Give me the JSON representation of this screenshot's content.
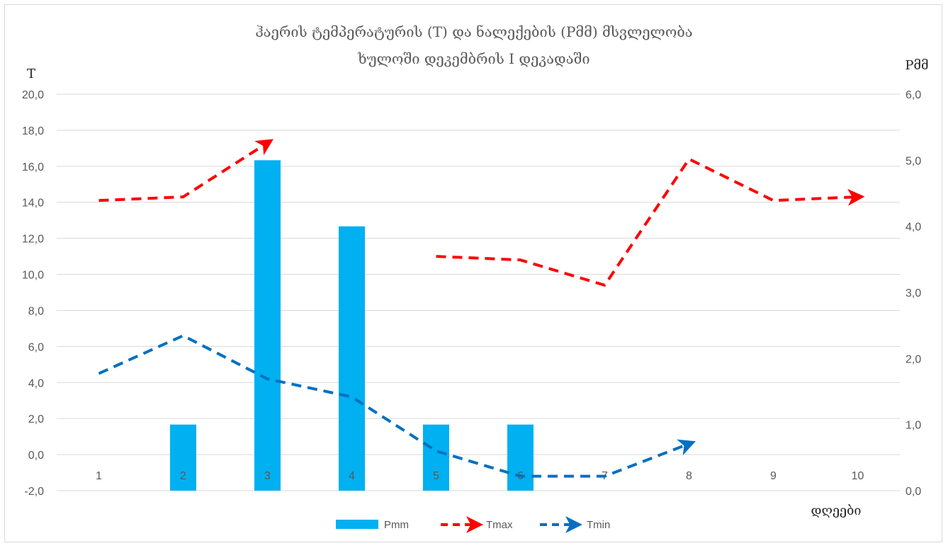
{
  "chart_data": {
    "type": "bar",
    "title": "ჰაერის ტემპერატურის (T) და ნალექების (Pმმ) მსვლელობა",
    "subtitle": "ხულოში დეკემბრის I დეკადაში",
    "ylabel": "T",
    "y2label": "Pმმ",
    "xlabel": "დღეები",
    "categories": [
      "1",
      "2",
      "3",
      "4",
      "5",
      "6",
      "7",
      "8",
      "9",
      "10"
    ],
    "ylim": [
      -2.0,
      20.0
    ],
    "y_ticks": [
      "20,0",
      "18,0",
      "16,0",
      "14,0",
      "12,0",
      "10,0",
      "8,0",
      "6,0",
      "4,0",
      "2,0",
      "0,0",
      "-2,0"
    ],
    "y2lim": [
      0.0,
      6.0
    ],
    "y2_ticks": [
      "6,0",
      "5,0",
      "4,0",
      "3,0",
      "2,0",
      "1,0",
      "0,0"
    ],
    "grid": true,
    "legend_position": "bottom",
    "series": [
      {
        "name": "Pmm",
        "type": "bar",
        "axis": "right",
        "color": "#00b0f0",
        "values": [
          null,
          1.0,
          5.0,
          4.0,
          1.0,
          1.0,
          null,
          null,
          null,
          null
        ]
      },
      {
        "name": "Tmax",
        "type": "line",
        "axis": "left",
        "color": "#ff0000",
        "dash": true,
        "segments": [
          {
            "x": [
              1,
              2,
              3
            ],
            "y": [
              14.1,
              14.3,
              17.3
            ]
          },
          {
            "x": [
              5,
              6,
              7,
              8,
              9,
              10
            ],
            "y": [
              11.0,
              10.8,
              9.4,
              16.4,
              14.1,
              14.3
            ]
          }
        ]
      },
      {
        "name": "Tmin",
        "type": "line",
        "axis": "left",
        "color": "#0070c0",
        "dash": true,
        "segments": [
          {
            "x": [
              1,
              2,
              3,
              4,
              5,
              6,
              7,
              8
            ],
            "y": [
              4.5,
              6.6,
              4.2,
              3.2,
              0.2,
              -1.2,
              -1.2,
              0.6
            ]
          }
        ]
      }
    ]
  }
}
